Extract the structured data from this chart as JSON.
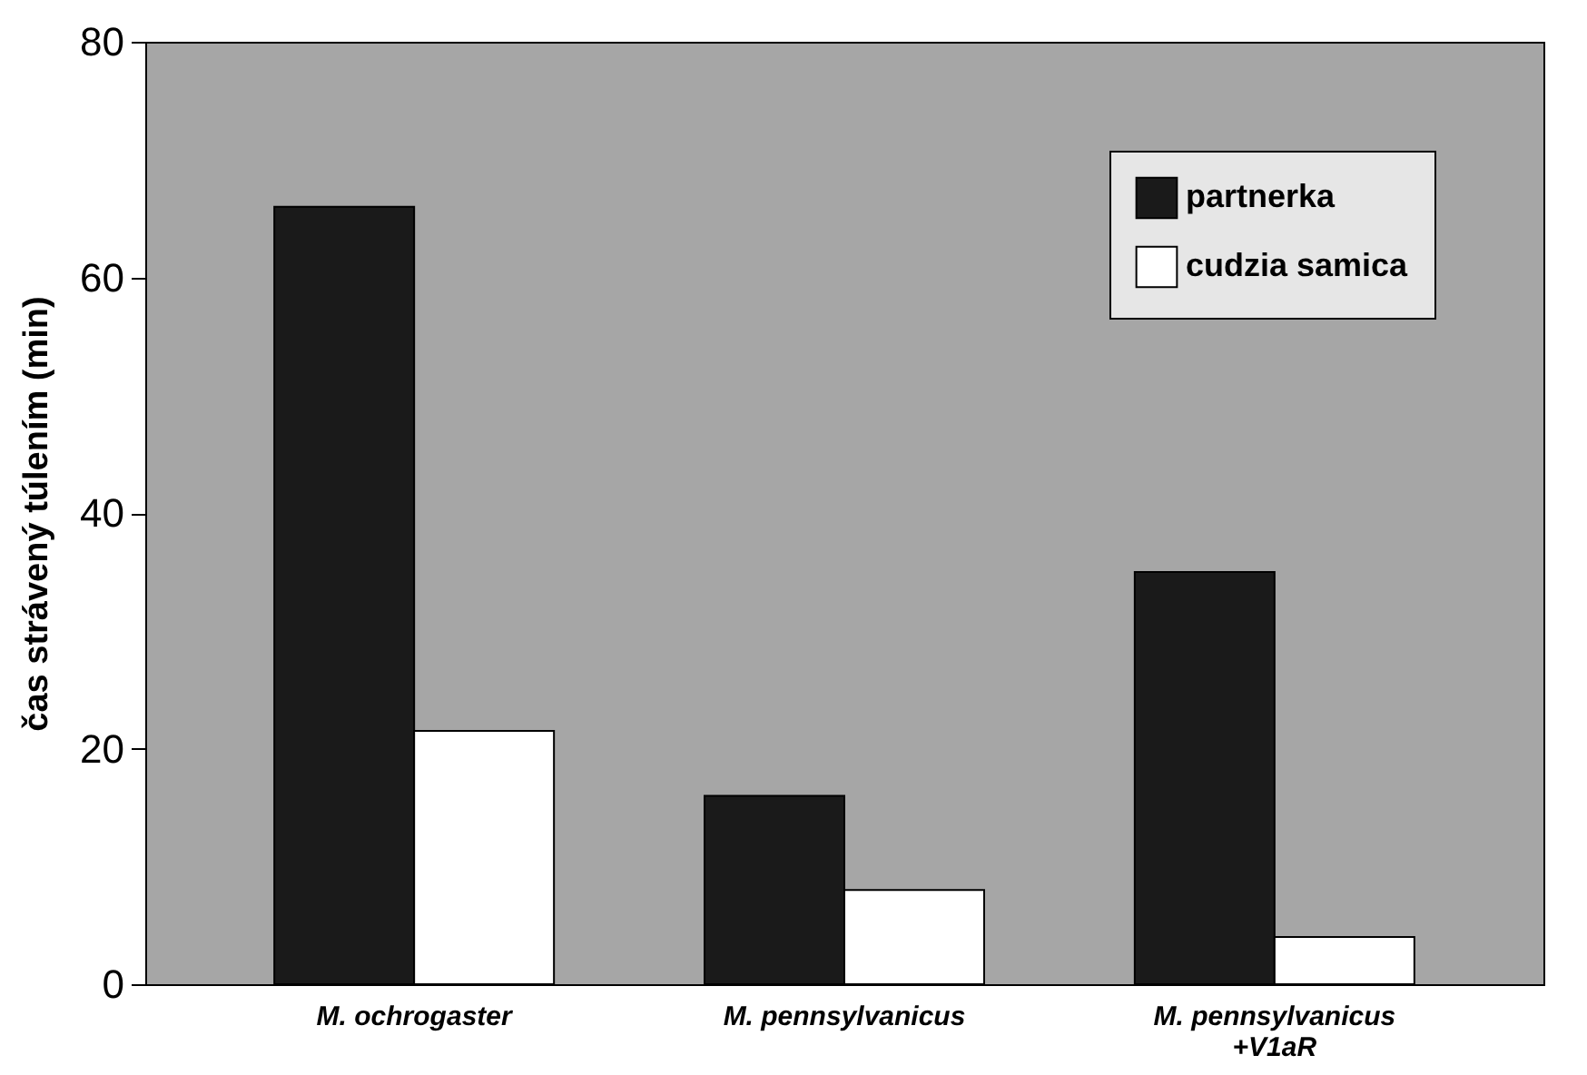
{
  "chart_data": {
    "type": "bar",
    "ylabel": "čas strávený túlením (min)",
    "categories": [
      "M. ochrogaster",
      "M. pennsylvanicus",
      "M. pennsylvanicus\n+V1aR"
    ],
    "series": [
      {
        "name": "partnerka",
        "color": "#1a1a1a",
        "values": [
          66,
          16,
          35
        ]
      },
      {
        "name": "cudzia samica",
        "color": "#ffffff",
        "values": [
          21.5,
          8,
          4
        ]
      }
    ],
    "ylim": [
      0,
      80
    ],
    "yticks": [
      0,
      20,
      40,
      60,
      80
    ],
    "grid": false,
    "legend": "top right"
  }
}
